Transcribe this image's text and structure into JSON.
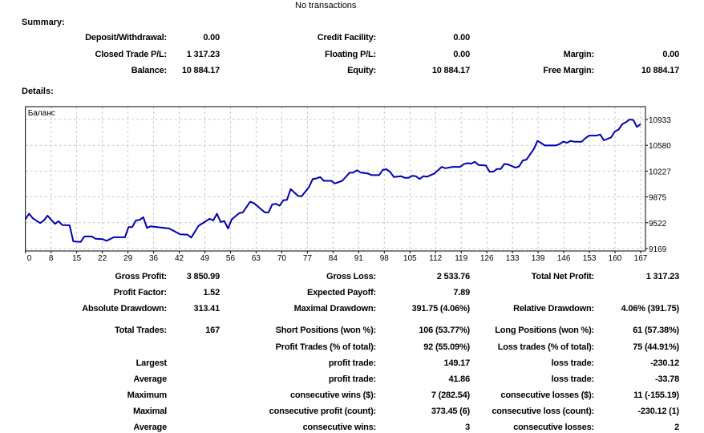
{
  "header": {
    "top_text": "No transactions"
  },
  "summary": {
    "heading": "Summary:",
    "rows": [
      [
        "Deposit/Withdrawal:",
        "0.00",
        "Credit Facility:",
        "0.00",
        "",
        ""
      ],
      [
        "Closed Trade P/L:",
        "1 317.23",
        "Floating P/L:",
        "0.00",
        "Margin:",
        "0.00"
      ],
      [
        "Balance:",
        "10 884.17",
        "Equity:",
        "10 884.17",
        "Free Margin:",
        "10 884.17"
      ]
    ]
  },
  "details": {
    "heading": "Details:",
    "rows": [
      [
        "Gross Profit:",
        "3 850.99",
        "Gross Loss:",
        "2 533.76",
        "Total Net Profit:",
        "1 317.23"
      ],
      [
        "Profit Factor:",
        "1.52",
        "Expected Payoff:",
        "7.89",
        "",
        ""
      ],
      [
        "Absolute Drawdown:",
        "313.41",
        "Maximal Drawdown:",
        "391.75 (4.06%)",
        "Relative Drawdown:",
        "4.06% (391.75)"
      ],
      [
        "Total Trades:",
        "167",
        "Short Positions (won %):",
        "106 (53.77%)",
        "Long Positions (won %):",
        "61 (57.38%)"
      ],
      [
        "",
        "",
        "Profit Trades (% of total):",
        "92 (55.09%)",
        "Loss trades (% of total):",
        "75 (44.91%)"
      ],
      [
        "Largest",
        "",
        "profit trade:",
        "149.17",
        "loss trade:",
        "-230.12"
      ],
      [
        "Average",
        "",
        "profit trade:",
        "41.86",
        "loss trade:",
        "-33.78"
      ],
      [
        "Maximum",
        "",
        "consecutive wins ($):",
        "7 (282.54)",
        "consecutive losses ($):",
        "11 (-155.19)"
      ],
      [
        "Maximal",
        "",
        "consecutive profit (count):",
        "373.45 (6)",
        "consecutive loss (count):",
        "-230.12 (1)"
      ],
      [
        "Average",
        "",
        "consecutive wins:",
        "3",
        "consecutive losses:",
        "2"
      ]
    ]
  },
  "chart_data": {
    "type": "line",
    "title": "Баланс",
    "line_color": "#0000b4",
    "grid": true,
    "x_ticks": [
      "0",
      "8",
      "15",
      "22",
      "29",
      "36",
      "42",
      "49",
      "56",
      "63",
      "70",
      "77",
      "84",
      "91",
      "98",
      "105",
      "112",
      "119",
      "126",
      "133",
      "139",
      "146",
      "153",
      "160",
      "167"
    ],
    "y_ticks": [
      9169,
      9522,
      9875,
      10227,
      10580,
      10933
    ],
    "xlim": [
      0,
      167
    ],
    "ylim": [
      9136,
      11108
    ],
    "series": [
      {
        "points": [
          [
            0,
            9571
          ],
          [
            1,
            9645
          ],
          [
            2,
            9583
          ],
          [
            4,
            9517
          ],
          [
            5,
            9553
          ],
          [
            6,
            9619
          ],
          [
            8,
            9506
          ],
          [
            9,
            9542
          ],
          [
            10,
            9491
          ],
          [
            12,
            9487
          ],
          [
            13,
            9268
          ],
          [
            15,
            9260
          ],
          [
            16,
            9334
          ],
          [
            18,
            9334
          ],
          [
            19,
            9304
          ],
          [
            21,
            9297
          ],
          [
            22,
            9275
          ],
          [
            24,
            9323
          ],
          [
            27,
            9323
          ],
          [
            28,
            9462
          ],
          [
            29,
            9462
          ],
          [
            30,
            9553
          ],
          [
            31,
            9560
          ],
          [
            32,
            9597
          ],
          [
            33,
            9451
          ],
          [
            34,
            9473
          ],
          [
            37,
            9455
          ],
          [
            39,
            9444
          ],
          [
            42,
            9363
          ],
          [
            44,
            9360
          ],
          [
            45,
            9319
          ],
          [
            47,
            9480
          ],
          [
            50,
            9575
          ],
          [
            51,
            9553
          ],
          [
            52,
            9645
          ],
          [
            53,
            9531
          ],
          [
            54,
            9545
          ],
          [
            55,
            9443
          ],
          [
            56,
            9568
          ],
          [
            58,
            9652
          ],
          [
            59,
            9663
          ],
          [
            61,
            9809
          ],
          [
            62,
            9790
          ],
          [
            65,
            9663
          ],
          [
            66,
            9663
          ],
          [
            67,
            9773
          ],
          [
            68,
            9780
          ],
          [
            69,
            9755
          ],
          [
            70,
            9828
          ],
          [
            71,
            9835
          ],
          [
            72,
            9981
          ],
          [
            74,
            9890
          ],
          [
            75,
            9883
          ],
          [
            77,
            10011
          ],
          [
            78,
            10120
          ],
          [
            79,
            10127
          ],
          [
            80,
            10146
          ],
          [
            81,
            10095
          ],
          [
            83,
            10095
          ],
          [
            84,
            10058
          ],
          [
            86,
            10095
          ],
          [
            88,
            10205
          ],
          [
            89,
            10208
          ],
          [
            90,
            10238
          ],
          [
            91,
            10208
          ],
          [
            93,
            10194
          ],
          [
            94,
            10172
          ],
          [
            96,
            10172
          ],
          [
            97,
            10245
          ],
          [
            98,
            10252
          ],
          [
            99,
            10216
          ],
          [
            100,
            10146
          ],
          [
            102,
            10157
          ],
          [
            103,
            10135
          ],
          [
            104,
            10135
          ],
          [
            105,
            10164
          ],
          [
            106,
            10157
          ],
          [
            107,
            10120
          ],
          [
            108,
            10157
          ],
          [
            109,
            10150
          ],
          [
            111,
            10194
          ],
          [
            112,
            10238
          ],
          [
            113,
            10285
          ],
          [
            114,
            10267
          ],
          [
            116,
            10285
          ],
          [
            118,
            10285
          ],
          [
            119,
            10322
          ],
          [
            120,
            10336
          ],
          [
            121,
            10329
          ],
          [
            122,
            10355
          ],
          [
            123,
            10311
          ],
          [
            125,
            10304
          ],
          [
            126,
            10219
          ],
          [
            127,
            10219
          ],
          [
            128,
            10256
          ],
          [
            129,
            10256
          ],
          [
            130,
            10325
          ],
          [
            131,
            10318
          ],
          [
            133,
            10274
          ],
          [
            134,
            10292
          ],
          [
            135,
            10373
          ],
          [
            136,
            10384
          ],
          [
            137,
            10457
          ],
          [
            138,
            10530
          ],
          [
            139,
            10640
          ],
          [
            140,
            10611
          ],
          [
            141,
            10578
          ],
          [
            144,
            10578
          ],
          [
            145,
            10597
          ],
          [
            146,
            10629
          ],
          [
            147,
            10615
          ],
          [
            148,
            10640
          ],
          [
            149,
            10629
          ],
          [
            151,
            10629
          ],
          [
            152,
            10677
          ],
          [
            153,
            10713
          ],
          [
            155,
            10713
          ],
          [
            156,
            10728
          ],
          [
            157,
            10648
          ],
          [
            159,
            10688
          ],
          [
            160,
            10768
          ],
          [
            161,
            10794
          ],
          [
            162,
            10867
          ],
          [
            163,
            10896
          ],
          [
            164,
            10933
          ],
          [
            165,
            10926
          ],
          [
            166,
            10830
          ],
          [
            167,
            10870
          ]
        ]
      }
    ]
  }
}
